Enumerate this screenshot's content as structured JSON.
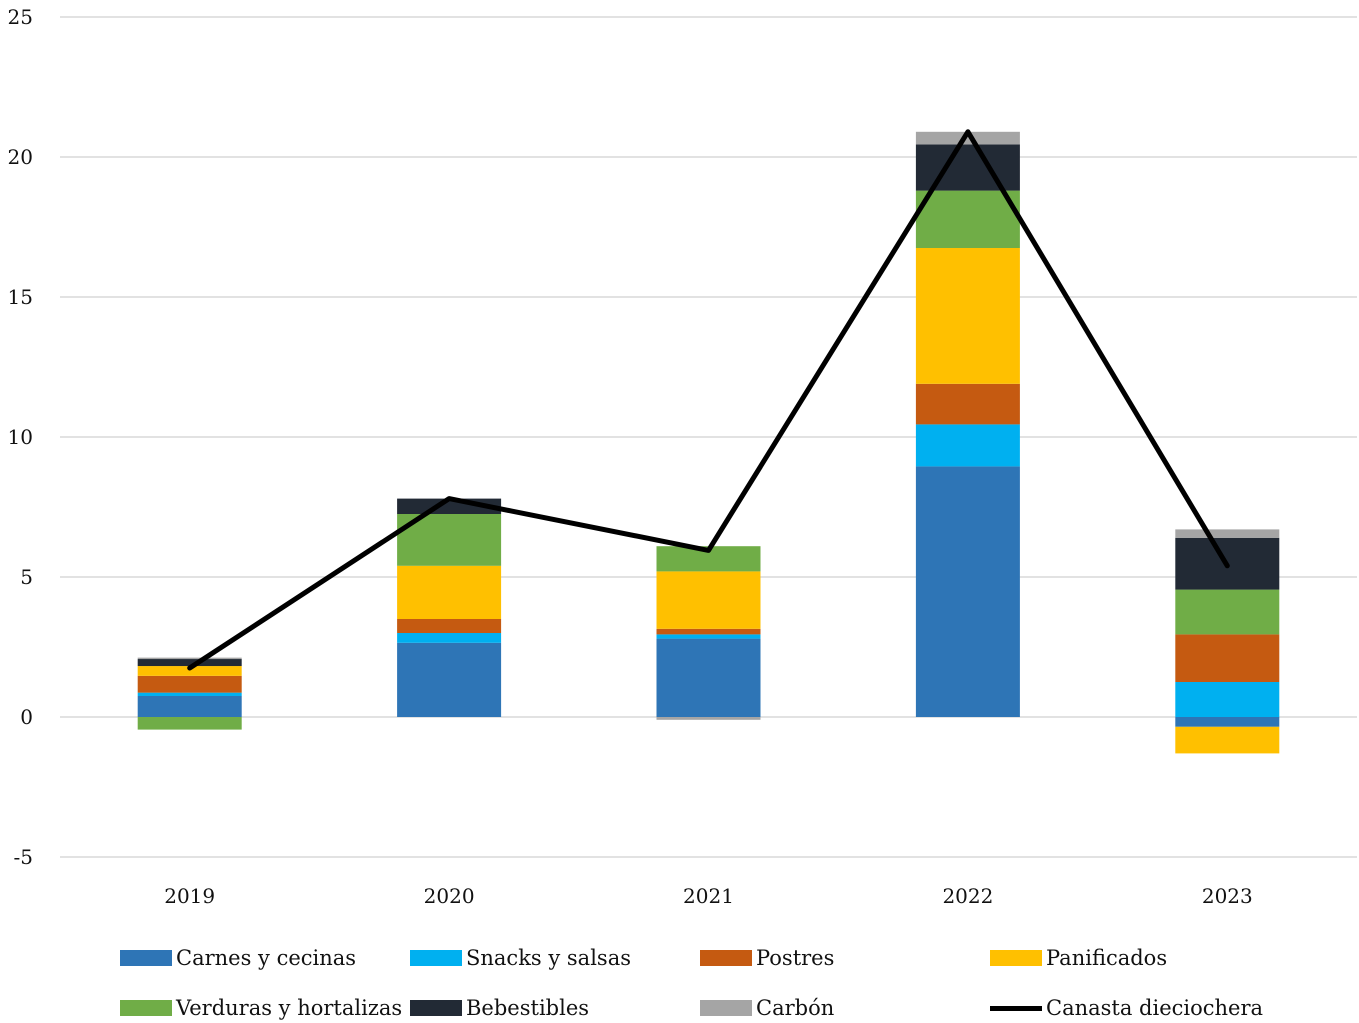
{
  "chart_data": {
    "type": "bar",
    "stacked": true,
    "categories": [
      "2019",
      "2020",
      "2021",
      "2022",
      "2023"
    ],
    "ylim": [
      -5,
      25
    ],
    "yticks": [
      -5,
      0,
      5,
      10,
      15,
      20,
      25
    ],
    "grid": true,
    "legend_position": "bottom",
    "series": [
      {
        "name": "Carnes y cecinas",
        "color": "#2E75B6",
        "values": [
          0.75,
          2.65,
          2.8,
          8.95,
          -0.35
        ]
      },
      {
        "name": "Snacks y salsas",
        "color": "#00B0F0",
        "values": [
          0.12,
          0.35,
          0.15,
          1.5,
          1.25
        ]
      },
      {
        "name": "Postres",
        "color": "#C55A11",
        "values": [
          0.6,
          0.5,
          0.2,
          1.45,
          1.7
        ]
      },
      {
        "name": "Panificados",
        "color": "#FFC000",
        "values": [
          0.35,
          1.9,
          2.05,
          4.85,
          -0.95
        ]
      },
      {
        "name": "Verduras y hortalizas",
        "color": "#70AD47",
        "values": [
          -0.45,
          1.85,
          0.9,
          2.05,
          1.6
        ]
      },
      {
        "name": "Bebestibles",
        "color": "#222A35",
        "values": [
          0.25,
          0.55,
          0.0,
          1.65,
          1.85
        ]
      },
      {
        "name": "Carbón",
        "color": "#A5A5A5",
        "values": [
          0.05,
          0.0,
          -0.1,
          0.45,
          0.3
        ]
      }
    ],
    "line": {
      "name": "Canasta dieciochera",
      "color": "#000000",
      "values": [
        1.75,
        7.8,
        5.95,
        20.9,
        5.4
      ]
    }
  }
}
